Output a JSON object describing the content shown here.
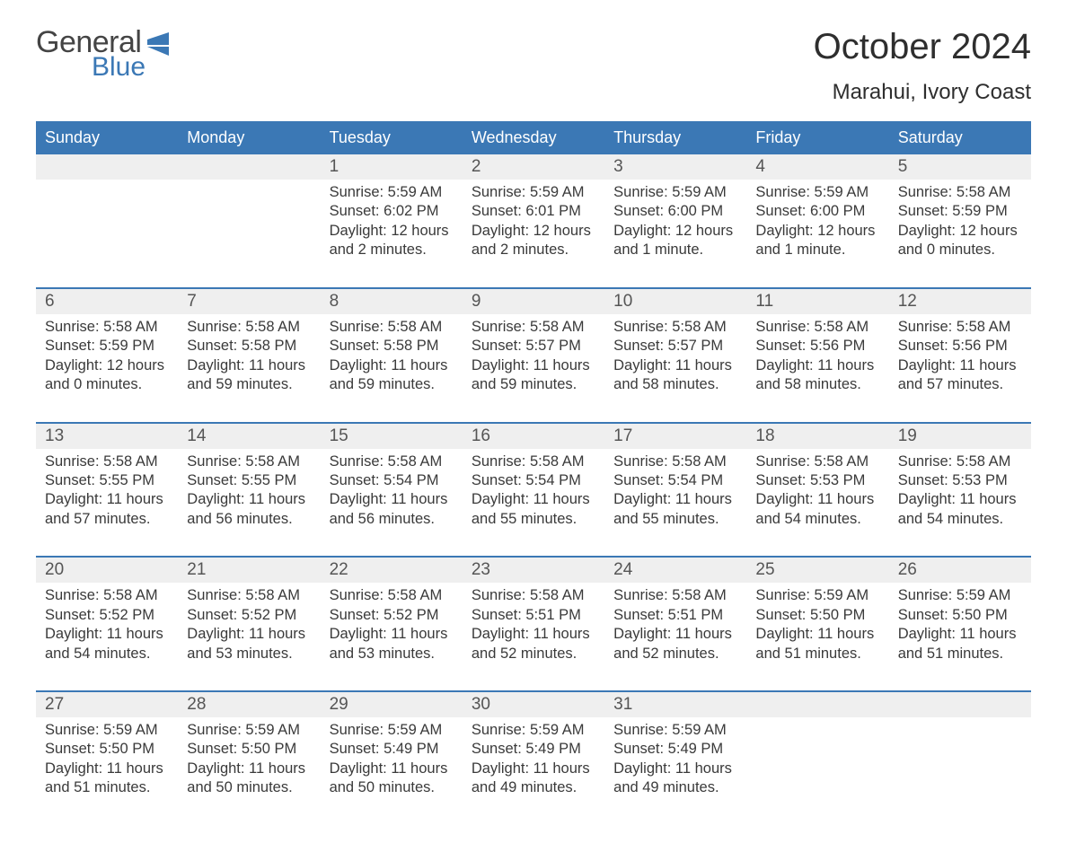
{
  "brand": {
    "word1": "General",
    "word2": "Blue",
    "accent_color": "#3b78b5"
  },
  "title": "October 2024",
  "location": "Marahui, Ivory Coast",
  "colors": {
    "header_bg": "#3b78b5",
    "header_text": "#ffffff",
    "daynum_bg": "#efefef",
    "text": "#333333",
    "rule": "#3b78b5",
    "page_bg": "#ffffff"
  },
  "day_headers": [
    "Sunday",
    "Monday",
    "Tuesday",
    "Wednesday",
    "Thursday",
    "Friday",
    "Saturday"
  ],
  "weeks": [
    [
      {
        "num": "",
        "sunrise": "",
        "sunset": "",
        "daylight": ""
      },
      {
        "num": "",
        "sunrise": "",
        "sunset": "",
        "daylight": ""
      },
      {
        "num": "1",
        "sunrise": "Sunrise: 5:59 AM",
        "sunset": "Sunset: 6:02 PM",
        "daylight": "Daylight: 12 hours and 2 minutes."
      },
      {
        "num": "2",
        "sunrise": "Sunrise: 5:59 AM",
        "sunset": "Sunset: 6:01 PM",
        "daylight": "Daylight: 12 hours and 2 minutes."
      },
      {
        "num": "3",
        "sunrise": "Sunrise: 5:59 AM",
        "sunset": "Sunset: 6:00 PM",
        "daylight": "Daylight: 12 hours and 1 minute."
      },
      {
        "num": "4",
        "sunrise": "Sunrise: 5:59 AM",
        "sunset": "Sunset: 6:00 PM",
        "daylight": "Daylight: 12 hours and 1 minute."
      },
      {
        "num": "5",
        "sunrise": "Sunrise: 5:58 AM",
        "sunset": "Sunset: 5:59 PM",
        "daylight": "Daylight: 12 hours and 0 minutes."
      }
    ],
    [
      {
        "num": "6",
        "sunrise": "Sunrise: 5:58 AM",
        "sunset": "Sunset: 5:59 PM",
        "daylight": "Daylight: 12 hours and 0 minutes."
      },
      {
        "num": "7",
        "sunrise": "Sunrise: 5:58 AM",
        "sunset": "Sunset: 5:58 PM",
        "daylight": "Daylight: 11 hours and 59 minutes."
      },
      {
        "num": "8",
        "sunrise": "Sunrise: 5:58 AM",
        "sunset": "Sunset: 5:58 PM",
        "daylight": "Daylight: 11 hours and 59 minutes."
      },
      {
        "num": "9",
        "sunrise": "Sunrise: 5:58 AM",
        "sunset": "Sunset: 5:57 PM",
        "daylight": "Daylight: 11 hours and 59 minutes."
      },
      {
        "num": "10",
        "sunrise": "Sunrise: 5:58 AM",
        "sunset": "Sunset: 5:57 PM",
        "daylight": "Daylight: 11 hours and 58 minutes."
      },
      {
        "num": "11",
        "sunrise": "Sunrise: 5:58 AM",
        "sunset": "Sunset: 5:56 PM",
        "daylight": "Daylight: 11 hours and 58 minutes."
      },
      {
        "num": "12",
        "sunrise": "Sunrise: 5:58 AM",
        "sunset": "Sunset: 5:56 PM",
        "daylight": "Daylight: 11 hours and 57 minutes."
      }
    ],
    [
      {
        "num": "13",
        "sunrise": "Sunrise: 5:58 AM",
        "sunset": "Sunset: 5:55 PM",
        "daylight": "Daylight: 11 hours and 57 minutes."
      },
      {
        "num": "14",
        "sunrise": "Sunrise: 5:58 AM",
        "sunset": "Sunset: 5:55 PM",
        "daylight": "Daylight: 11 hours and 56 minutes."
      },
      {
        "num": "15",
        "sunrise": "Sunrise: 5:58 AM",
        "sunset": "Sunset: 5:54 PM",
        "daylight": "Daylight: 11 hours and 56 minutes."
      },
      {
        "num": "16",
        "sunrise": "Sunrise: 5:58 AM",
        "sunset": "Sunset: 5:54 PM",
        "daylight": "Daylight: 11 hours and 55 minutes."
      },
      {
        "num": "17",
        "sunrise": "Sunrise: 5:58 AM",
        "sunset": "Sunset: 5:54 PM",
        "daylight": "Daylight: 11 hours and 55 minutes."
      },
      {
        "num": "18",
        "sunrise": "Sunrise: 5:58 AM",
        "sunset": "Sunset: 5:53 PM",
        "daylight": "Daylight: 11 hours and 54 minutes."
      },
      {
        "num": "19",
        "sunrise": "Sunrise: 5:58 AM",
        "sunset": "Sunset: 5:53 PM",
        "daylight": "Daylight: 11 hours and 54 minutes."
      }
    ],
    [
      {
        "num": "20",
        "sunrise": "Sunrise: 5:58 AM",
        "sunset": "Sunset: 5:52 PM",
        "daylight": "Daylight: 11 hours and 54 minutes."
      },
      {
        "num": "21",
        "sunrise": "Sunrise: 5:58 AM",
        "sunset": "Sunset: 5:52 PM",
        "daylight": "Daylight: 11 hours and 53 minutes."
      },
      {
        "num": "22",
        "sunrise": "Sunrise: 5:58 AM",
        "sunset": "Sunset: 5:52 PM",
        "daylight": "Daylight: 11 hours and 53 minutes."
      },
      {
        "num": "23",
        "sunrise": "Sunrise: 5:58 AM",
        "sunset": "Sunset: 5:51 PM",
        "daylight": "Daylight: 11 hours and 52 minutes."
      },
      {
        "num": "24",
        "sunrise": "Sunrise: 5:58 AM",
        "sunset": "Sunset: 5:51 PM",
        "daylight": "Daylight: 11 hours and 52 minutes."
      },
      {
        "num": "25",
        "sunrise": "Sunrise: 5:59 AM",
        "sunset": "Sunset: 5:50 PM",
        "daylight": "Daylight: 11 hours and 51 minutes."
      },
      {
        "num": "26",
        "sunrise": "Sunrise: 5:59 AM",
        "sunset": "Sunset: 5:50 PM",
        "daylight": "Daylight: 11 hours and 51 minutes."
      }
    ],
    [
      {
        "num": "27",
        "sunrise": "Sunrise: 5:59 AM",
        "sunset": "Sunset: 5:50 PM",
        "daylight": "Daylight: 11 hours and 51 minutes."
      },
      {
        "num": "28",
        "sunrise": "Sunrise: 5:59 AM",
        "sunset": "Sunset: 5:50 PM",
        "daylight": "Daylight: 11 hours and 50 minutes."
      },
      {
        "num": "29",
        "sunrise": "Sunrise: 5:59 AM",
        "sunset": "Sunset: 5:49 PM",
        "daylight": "Daylight: 11 hours and 50 minutes."
      },
      {
        "num": "30",
        "sunrise": "Sunrise: 5:59 AM",
        "sunset": "Sunset: 5:49 PM",
        "daylight": "Daylight: 11 hours and 49 minutes."
      },
      {
        "num": "31",
        "sunrise": "Sunrise: 5:59 AM",
        "sunset": "Sunset: 5:49 PM",
        "daylight": "Daylight: 11 hours and 49 minutes."
      },
      {
        "num": "",
        "sunrise": "",
        "sunset": "",
        "daylight": ""
      },
      {
        "num": "",
        "sunrise": "",
        "sunset": "",
        "daylight": ""
      }
    ]
  ]
}
